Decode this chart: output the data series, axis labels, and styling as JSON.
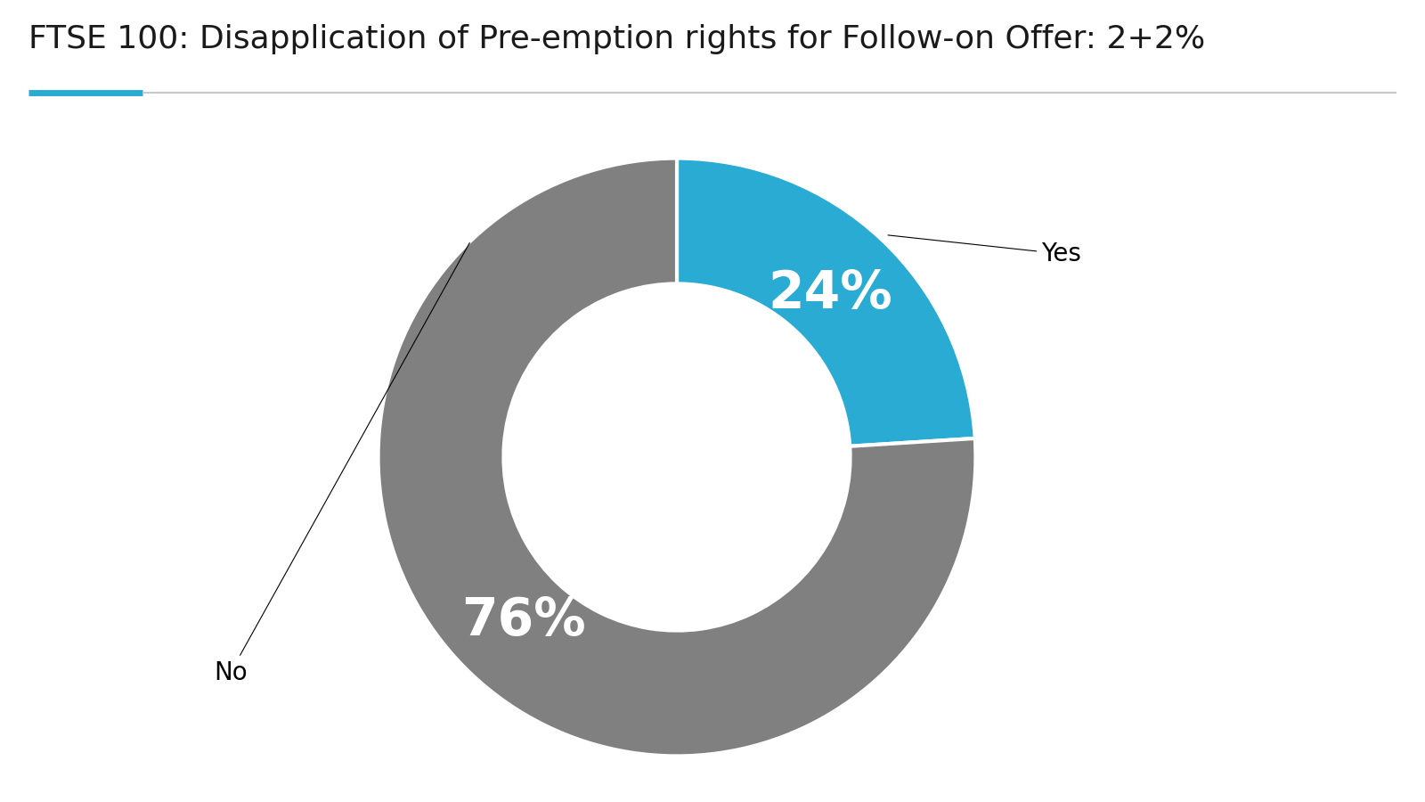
{
  "title": "FTSE 100: Disapplication of Pre-emption rights for Follow-on Offer: 2+2%",
  "values": [
    24,
    76
  ],
  "labels": [
    "Yes",
    "No"
  ],
  "colors": [
    "#29ABD4",
    "#808080"
  ],
  "pct_labels": [
    "24%",
    "76%"
  ],
  "pct_label_colors": [
    "white",
    "white"
  ],
  "pct_fontsize": 42,
  "label_fontsize": 20,
  "title_fontsize": 26,
  "donut_width": 0.42,
  "start_angle": 90,
  "title_color": "#1a1a1a",
  "underline_color_left": "#29ABD4",
  "underline_color_right": "#C8C8C8",
  "background_color": "#FFFFFF",
  "yes_pct_r": 0.75,
  "no_pct_r": 0.75
}
